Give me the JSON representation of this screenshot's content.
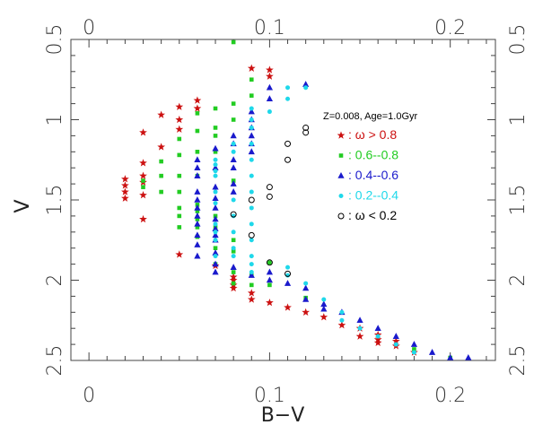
{
  "chart_data": {
    "type": "scatter",
    "xlabel": "B−V",
    "ylabel": "V",
    "xlim": [
      -0.01,
      0.225
    ],
    "ylim": [
      2.5,
      0.5
    ],
    "x_ticks": [
      0,
      0.1,
      0.2
    ],
    "x_tick_labels": [
      "0",
      "0.1",
      "0.2"
    ],
    "y_ticks": [
      0.5,
      1,
      1.5,
      2,
      2.5
    ],
    "y_tick_labels": [
      "0.5",
      "1",
      "1.5",
      "2",
      "2.5"
    ],
    "y_inverted": true,
    "mirrored_axes": true,
    "legend_position": "upper right",
    "annotation": "Z=0.008, Age=1.0Gyr",
    "series": [
      {
        "name": ": ω > 0.8",
        "color": "#cc1111",
        "marker": "star",
        "points": [
          [
            0.02,
            1.37
          ],
          [
            0.02,
            1.41
          ],
          [
            0.02,
            1.45
          ],
          [
            0.02,
            1.49
          ],
          [
            0.03,
            1.08
          ],
          [
            0.03,
            1.27
          ],
          [
            0.03,
            1.35
          ],
          [
            0.03,
            1.39
          ],
          [
            0.03,
            1.47
          ],
          [
            0.03,
            1.62
          ],
          [
            0.04,
            0.97
          ],
          [
            0.04,
            1.17
          ],
          [
            0.05,
            0.92
          ],
          [
            0.05,
            1.0
          ],
          [
            0.05,
            1.06
          ],
          [
            0.05,
            1.84
          ],
          [
            0.06,
            0.88
          ],
          [
            0.06,
            0.93
          ],
          [
            0.07,
            1.91
          ],
          [
            0.08,
            1.98
          ],
          [
            0.08,
            2.0
          ],
          [
            0.08,
            2.03
          ],
          [
            0.08,
            2.05
          ],
          [
            0.09,
            0.68
          ],
          [
            0.09,
            2.08
          ],
          [
            0.09,
            2.12
          ],
          [
            0.1,
            0.69
          ],
          [
            0.1,
            0.73
          ],
          [
            0.1,
            2.14
          ],
          [
            0.11,
            2.17
          ],
          [
            0.12,
            2.2
          ],
          [
            0.13,
            2.23
          ],
          [
            0.14,
            2.28
          ],
          [
            0.15,
            2.3
          ],
          [
            0.15,
            2.35
          ],
          [
            0.16,
            2.34
          ],
          [
            0.16,
            2.37
          ],
          [
            0.16,
            2.39
          ],
          [
            0.17,
            2.38
          ],
          [
            0.17,
            2.41
          ],
          [
            0.18,
            2.45
          ]
        ]
      },
      {
        "name": ": 0.6--0.8",
        "color": "#22cc22",
        "marker": "square",
        "points": [
          [
            0.03,
            1.38
          ],
          [
            0.03,
            1.42
          ],
          [
            0.04,
            1.26
          ],
          [
            0.04,
            1.35
          ],
          [
            0.04,
            1.45
          ],
          [
            0.05,
            1.12
          ],
          [
            0.05,
            1.22
          ],
          [
            0.05,
            1.35
          ],
          [
            0.05,
            1.45
          ],
          [
            0.05,
            1.55
          ],
          [
            0.05,
            1.6
          ],
          [
            0.05,
            1.67
          ],
          [
            0.06,
            0.96
          ],
          [
            0.06,
            1.07
          ],
          [
            0.06,
            1.2
          ],
          [
            0.06,
            1.35
          ],
          [
            0.06,
            1.53
          ],
          [
            0.06,
            1.57
          ],
          [
            0.06,
            1.62
          ],
          [
            0.06,
            1.67
          ],
          [
            0.06,
            1.73
          ],
          [
            0.07,
            0.93
          ],
          [
            0.07,
            1.05
          ],
          [
            0.07,
            1.1
          ],
          [
            0.07,
            1.2
          ],
          [
            0.07,
            1.6
          ],
          [
            0.07,
            1.67
          ],
          [
            0.07,
            1.8
          ],
          [
            0.07,
            1.9
          ],
          [
            0.08,
            0.5
          ],
          [
            0.08,
            0.9
          ],
          [
            0.08,
            1.0
          ],
          [
            0.08,
            1.38
          ],
          [
            0.08,
            1.75
          ],
          [
            0.08,
            1.82
          ],
          [
            0.08,
            1.95
          ],
          [
            0.08,
            2.02
          ],
          [
            0.09,
            0.75
          ],
          [
            0.09,
            0.85
          ],
          [
            0.09,
            1.97
          ],
          [
            0.09,
            2.03
          ],
          [
            0.1,
            1.89
          ],
          [
            0.1,
            2.03
          ],
          [
            0.12,
            2.11
          ],
          [
            0.18,
            2.43
          ],
          [
            0.2,
            2.5
          ]
        ]
      },
      {
        "name": ": 0.4--0.6",
        "color": "#1a1acc",
        "marker": "triangle",
        "points": [
          [
            0.06,
            1.25
          ],
          [
            0.06,
            1.3
          ],
          [
            0.06,
            1.35
          ],
          [
            0.06,
            1.45
          ],
          [
            0.06,
            1.5
          ],
          [
            0.06,
            1.55
          ],
          [
            0.06,
            1.6
          ],
          [
            0.06,
            1.65
          ],
          [
            0.06,
            1.72
          ],
          [
            0.06,
            1.78
          ],
          [
            0.06,
            1.85
          ],
          [
            0.07,
            1.18
          ],
          [
            0.07,
            1.3
          ],
          [
            0.07,
            1.42
          ],
          [
            0.07,
            1.49
          ],
          [
            0.07,
            1.55
          ],
          [
            0.07,
            1.62
          ],
          [
            0.07,
            1.68
          ],
          [
            0.07,
            1.72
          ],
          [
            0.07,
            1.75
          ],
          [
            0.07,
            1.83
          ],
          [
            0.07,
            1.9
          ],
          [
            0.07,
            1.95
          ],
          [
            0.08,
            1.1
          ],
          [
            0.08,
            1.15
          ],
          [
            0.08,
            1.25
          ],
          [
            0.08,
            1.3
          ],
          [
            0.08,
            1.4
          ],
          [
            0.08,
            1.45
          ],
          [
            0.08,
            1.92
          ],
          [
            0.09,
            0.95
          ],
          [
            0.09,
            1.0
          ],
          [
            0.09,
            1.05
          ],
          [
            0.09,
            1.1
          ],
          [
            0.09,
            1.15
          ],
          [
            0.09,
            1.2
          ],
          [
            0.09,
            1.97
          ],
          [
            0.1,
            0.8
          ],
          [
            0.1,
            0.87
          ],
          [
            0.1,
            1.95
          ],
          [
            0.1,
            2.0
          ],
          [
            0.11,
            2.02
          ],
          [
            0.12,
            0.78
          ],
          [
            0.12,
            2.05
          ],
          [
            0.12,
            2.12
          ],
          [
            0.13,
            2.15
          ],
          [
            0.13,
            2.18
          ],
          [
            0.14,
            2.2
          ],
          [
            0.15,
            2.25
          ],
          [
            0.16,
            2.3
          ],
          [
            0.17,
            2.35
          ],
          [
            0.18,
            2.4
          ],
          [
            0.19,
            2.45
          ],
          [
            0.2,
            2.5
          ],
          [
            0.21,
            2.55
          ]
        ]
      },
      {
        "name": ": 0.2--0.4",
        "color": "#1fd8ea",
        "marker": "circle",
        "points": [
          [
            0.07,
            1.25
          ],
          [
            0.07,
            1.28
          ],
          [
            0.07,
            1.32
          ],
          [
            0.07,
            1.35
          ],
          [
            0.07,
            1.45
          ],
          [
            0.07,
            1.52
          ],
          [
            0.07,
            1.65
          ],
          [
            0.07,
            1.7
          ],
          [
            0.07,
            1.75
          ],
          [
            0.07,
            1.85
          ],
          [
            0.08,
            1.15
          ],
          [
            0.08,
            1.2
          ],
          [
            0.08,
            1.5
          ],
          [
            0.08,
            1.6
          ],
          [
            0.08,
            1.7
          ],
          [
            0.08,
            1.8
          ],
          [
            0.08,
            1.85
          ],
          [
            0.09,
            0.93
          ],
          [
            0.09,
            1.0
          ],
          [
            0.09,
            1.05
          ],
          [
            0.09,
            1.15
          ],
          [
            0.09,
            1.25
          ],
          [
            0.09,
            1.35
          ],
          [
            0.09,
            1.45
          ],
          [
            0.09,
            1.55
          ],
          [
            0.09,
            1.65
          ],
          [
            0.09,
            1.75
          ],
          [
            0.09,
            1.85
          ],
          [
            0.09,
            1.9
          ],
          [
            0.09,
            1.95
          ],
          [
            0.1,
            0.95
          ],
          [
            0.11,
            0.8
          ],
          [
            0.11,
            0.87
          ],
          [
            0.11,
            1.92
          ],
          [
            0.11,
            1.97
          ],
          [
            0.12,
            0.8
          ],
          [
            0.12,
            2.02
          ],
          [
            0.13,
            2.12
          ],
          [
            0.14,
            2.2
          ],
          [
            0.14,
            2.25
          ],
          [
            0.15,
            2.3
          ],
          [
            0.16,
            2.35
          ],
          [
            0.17,
            2.4
          ],
          [
            0.18,
            2.45
          ]
        ]
      },
      {
        "name": ": ω < 0.2",
        "color": "#000000",
        "marker": "open-circle",
        "points": [
          [
            0.08,
            1.59
          ],
          [
            0.09,
            1.5
          ],
          [
            0.09,
            1.72
          ],
          [
            0.1,
            1.42
          ],
          [
            0.1,
            1.48
          ],
          [
            0.1,
            1.89
          ],
          [
            0.11,
            1.15
          ],
          [
            0.11,
            1.25
          ],
          [
            0.11,
            1.96
          ],
          [
            0.12,
            1.05
          ],
          [
            0.12,
            1.08
          ]
        ]
      }
    ]
  }
}
